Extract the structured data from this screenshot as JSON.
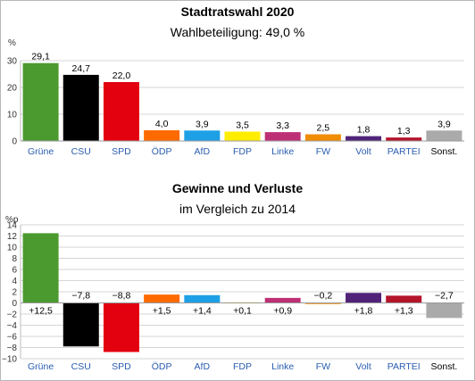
{
  "chart_data": [
    {
      "type": "bar",
      "title": "Stadtratswahl 2020",
      "subtitle": "Wahlbeteiligung: 49,0 %",
      "ylabel": "%",
      "ylim": [
        0,
        30
      ],
      "yticks": [
        "0",
        "10",
        "20",
        "30"
      ],
      "grid": true,
      "categories": [
        "Grüne",
        "CSU",
        "SPD",
        "ÖDP",
        "AfD",
        "FDP",
        "Linke",
        "FW",
        "Volt",
        "PARTEI",
        "Sonst."
      ],
      "values": [
        29.1,
        24.7,
        22.0,
        4.0,
        3.9,
        3.5,
        3.3,
        2.5,
        1.8,
        1.3,
        3.9
      ],
      "value_labels": [
        "29,1",
        "24,7",
        "22,0",
        "4,0",
        "3,9",
        "3,5",
        "3,3",
        "2,5",
        "1,8",
        "1,3",
        "3,9"
      ],
      "colors": [
        "#4a9a2f",
        "#000000",
        "#e3000f",
        "#ff6a00",
        "#1ea0e6",
        "#ffed00",
        "#be3075",
        "#f08c00",
        "#502379",
        "#b5152b",
        "#aaaaaa"
      ]
    },
    {
      "type": "bar",
      "title": "Gewinne und Verluste",
      "subtitle": "im Vergleich zu 2014",
      "ylabel": "%p",
      "ylim": [
        -10,
        14
      ],
      "yticks": [
        "−10",
        "−8",
        "−6",
        "−4",
        "−2",
        "0",
        "2",
        "4",
        "6",
        "8",
        "10",
        "12",
        "14"
      ],
      "grid": true,
      "categories": [
        "Grüne",
        "CSU",
        "SPD",
        "ÖDP",
        "AfD",
        "FDP",
        "Linke",
        "FW",
        "Volt",
        "PARTEI",
        "Sonst."
      ],
      "values": [
        12.5,
        -7.8,
        -8.8,
        1.5,
        1.4,
        0.1,
        0.9,
        -0.2,
        1.8,
        1.3,
        -2.7
      ],
      "value_labels": [
        "+12,5",
        "−7,8",
        "−8,8",
        "+1,5",
        "+1,4",
        "+0,1",
        "+0,9",
        "−0,2",
        "+1,8",
        "+1,3",
        "−2,7"
      ],
      "colors": [
        "#4a9a2f",
        "#000000",
        "#e3000f",
        "#ff6a00",
        "#1ea0e6",
        "#ffed00",
        "#be3075",
        "#f08c00",
        "#502379",
        "#b5152b",
        "#aaaaaa"
      ]
    }
  ]
}
